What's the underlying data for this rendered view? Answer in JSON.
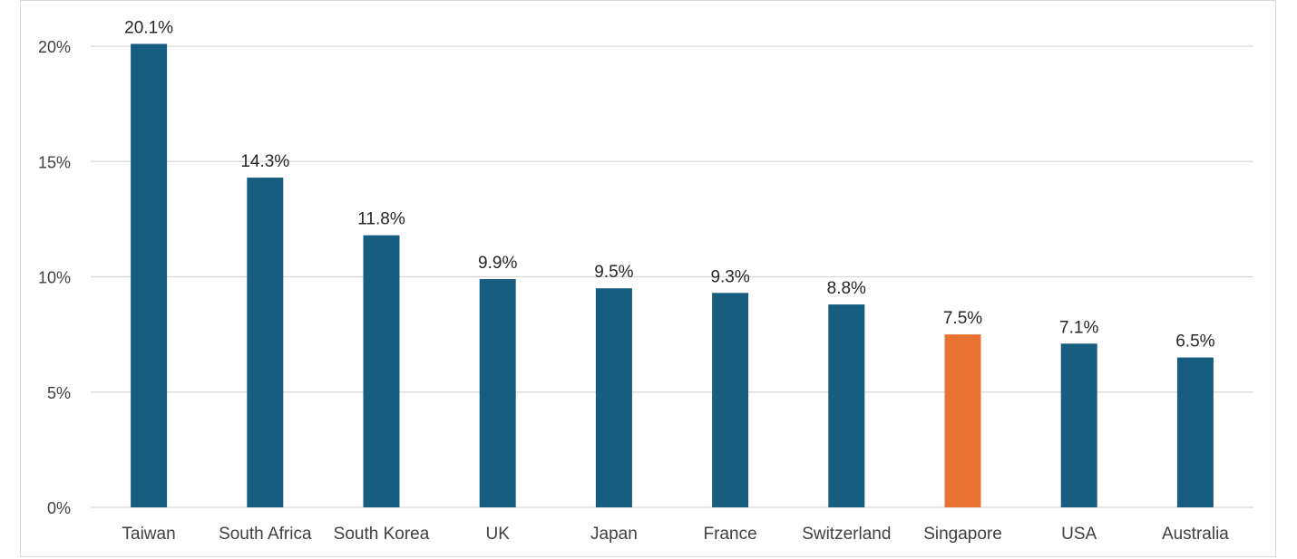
{
  "chart_data": {
    "type": "bar",
    "categories": [
      "Taiwan",
      "South Africa",
      "South Korea",
      "UK",
      "Japan",
      "France",
      "Switzerland",
      "Singapore",
      "USA",
      "Australia"
    ],
    "values": [
      20.1,
      14.3,
      11.8,
      9.9,
      9.5,
      9.3,
      8.8,
      7.5,
      7.1,
      6.5
    ],
    "data_labels": [
      "20.1%",
      "14.3%",
      "11.8%",
      "9.9%",
      "9.5%",
      "9.3%",
      "8.8%",
      "7.5%",
      "7.1%",
      "6.5%"
    ],
    "y_ticks": [
      0,
      5,
      10,
      15,
      20
    ],
    "y_tick_labels": [
      "0%",
      "5%",
      "10%",
      "15%",
      "20%"
    ],
    "ylim": [
      0,
      20
    ],
    "title": "",
    "xlabel": "",
    "ylabel": "",
    "grid": true,
    "legend": "none",
    "colors": {
      "default_bar": "#175D80",
      "highlight_bar": "#E87330",
      "highlight_category": "Singapore",
      "gridline": "#d9d9d9",
      "axis_text": "#404040"
    }
  }
}
